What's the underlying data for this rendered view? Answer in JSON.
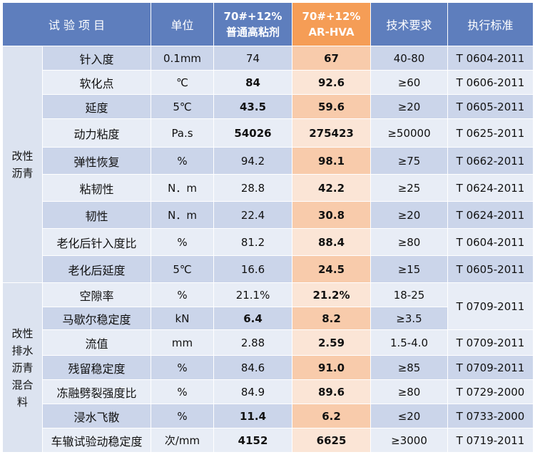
{
  "header": {
    "test_item": "试 验 项 目",
    "unit": "单位",
    "col1_line1": "70#+12%",
    "col1_line2": "普通高粘剂",
    "col2_line1": "70#+12%",
    "col2_line2": "AR-HVA",
    "tech_req": "技术要求",
    "standard": "执行标准"
  },
  "groups": {
    "asphalt": "改性沥青",
    "mixture": "改性排水沥青混合料"
  },
  "rows": [
    {
      "name": "针入度",
      "unit": "0.1mm",
      "v1": "74",
      "v2": "67",
      "tech": "40-80",
      "std": "T 0604-2011"
    },
    {
      "name": "软化点",
      "unit": "℃",
      "v1": "84",
      "v2": "92.6",
      "tech": "≥60",
      "std": "T 0606-2011"
    },
    {
      "name": "延度",
      "unit": "5℃",
      "v1": "43.5",
      "v2": "59.6",
      "tech": "≥20",
      "std": "T 0605-2011"
    },
    {
      "name": "动力粘度",
      "unit": "Pa.s",
      "v1": "54026",
      "v2": "275423",
      "tech": "≥50000",
      "std": "T 0625-2011"
    },
    {
      "name": "弹性恢复",
      "unit": "%",
      "v1": "94.2",
      "v2": "98.1",
      "tech": "≥75",
      "std": "T 0662-2011"
    },
    {
      "name": "粘韧性",
      "unit": "N．m",
      "v1": "28.8",
      "v2": "42.2",
      "tech": "≥25",
      "std": "T 0624-2011"
    },
    {
      "name": "韧性",
      "unit": "N．m",
      "v1": "22.4",
      "v2": "30.8",
      "tech": "≥20",
      "std": "T 0624-2011"
    },
    {
      "name": "老化后针入度比",
      "unit": "%",
      "v1": "81.2",
      "v2": "88.4",
      "tech": "≥80",
      "std": "T 0604-2011"
    },
    {
      "name": "老化后延度",
      "unit": "5℃",
      "v1": "16.6",
      "v2": "24.5",
      "tech": "≥15",
      "std": "T 0605-2011"
    },
    {
      "name": "空隙率",
      "unit": "%",
      "v1": "21.1%",
      "v2": "21.2%",
      "tech": "18-25",
      "std": "T 0709-2011"
    },
    {
      "name": "马歇尔稳定度",
      "unit": "kN",
      "v1": "6.4",
      "v2": "8.2",
      "tech": "≥3.5",
      "std": ""
    },
    {
      "name": "流值",
      "unit": "mm",
      "v1": "2.88",
      "v2": "2.59",
      "tech": "1.5-4.0",
      "std": "T 0709-2011"
    },
    {
      "name": "残留稳定度",
      "unit": "%",
      "v1": "84.6",
      "v2": "91.0",
      "tech": "≥85",
      "std": "T 0709-2011"
    },
    {
      "name": "冻融劈裂强度比",
      "unit": "%",
      "v1": "84.9",
      "v2": "89.6",
      "tech": "≥80",
      "std": "T 0729-2000"
    },
    {
      "name": "浸水飞散",
      "unit": "%",
      "v1": "11.4",
      "v2": "6.2",
      "tech": "≤20",
      "std": "T 0733-2000"
    },
    {
      "name": "车辙试验动稳定度",
      "unit": "次/mm",
      "v1": "4152",
      "v2": "6625",
      "tech": "≥3000",
      "std": "T 0719-2011"
    }
  ]
}
